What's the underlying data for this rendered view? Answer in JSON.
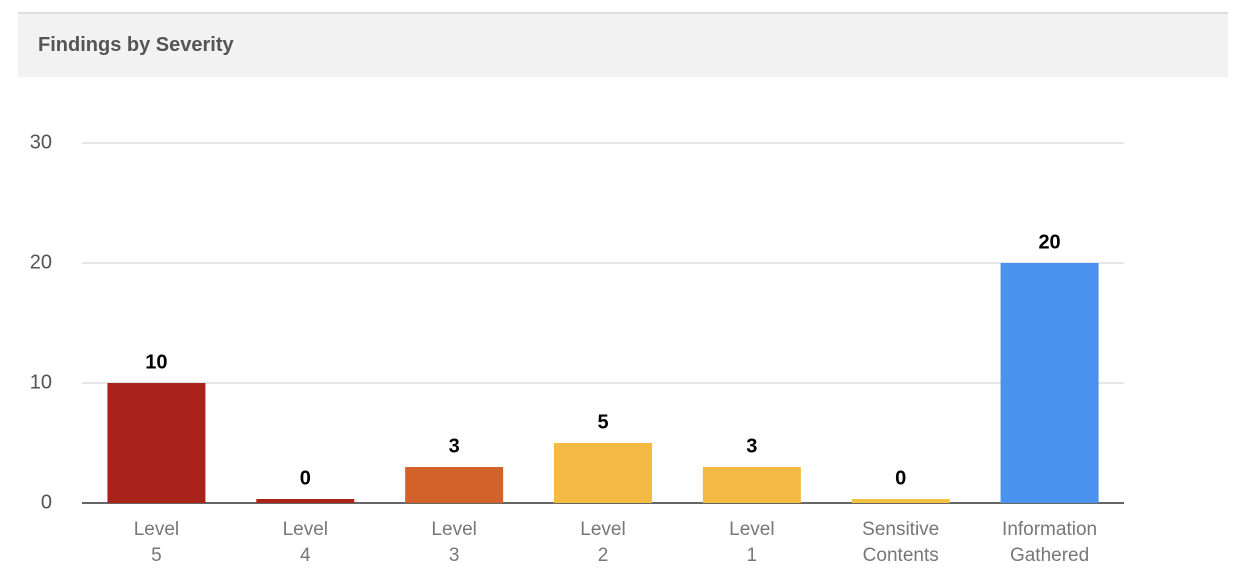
{
  "chart_data": {
    "type": "bar",
    "title": "Findings by Severity",
    "categories": [
      "Level 5",
      "Level 4",
      "Level 3",
      "Level 2",
      "Level 1",
      "Sensitive Contents",
      "Information Gathered"
    ],
    "values": [
      10,
      0,
      3,
      5,
      3,
      0,
      20
    ],
    "colors": [
      "#a9231b",
      "#a9231b",
      "#d2622a",
      "#f4bb44",
      "#f4bb44",
      "#f0c23f",
      "#4a92ee"
    ],
    "ylim": [
      0,
      30
    ],
    "yticks": [
      0,
      10,
      20,
      30
    ],
    "grid": true
  }
}
